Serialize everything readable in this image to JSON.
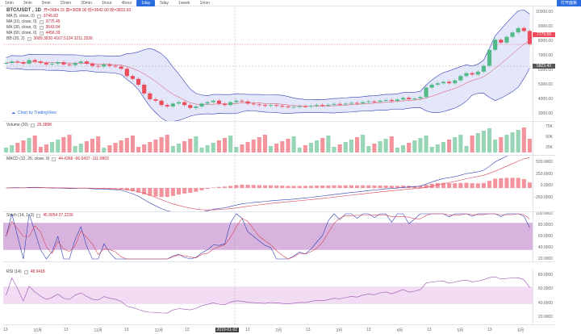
{
  "timeframes": [
    "1min",
    "3min",
    "5min",
    "15min",
    "30min",
    "1hour",
    "4hour",
    "1day",
    "5day",
    "1week",
    "1mon"
  ],
  "active_timeframe": "1day",
  "top_right_button": "打开面板",
  "symbol": {
    "name": "BTC/USDT , 1D",
    "ohlc": "开=3684.15 高=3838.00 低=3642.00 收=3823.93"
  },
  "indicators_main": [
    {
      "label": "MA (5, close, 0)",
      "value": "3746.83"
    },
    {
      "label": "MA (10, close, 0)",
      "value": "3775.45"
    },
    {
      "label": "MA (30, close, 0)",
      "value": "3643.04"
    },
    {
      "label": "MA (60, close, 0)",
      "value": "4456.39"
    },
    {
      "label": "BB (20, 2)",
      "value": "3689.3830  4167.5124  3211.2536"
    }
  ],
  "credit": "Chart by TradingView",
  "price_axis": [
    "10000.00",
    "9000.00",
    "8000.00",
    "7000.00",
    "6000.00",
    "5000.00",
    "4000.00",
    "3000.00"
  ],
  "current_price": "7779.56",
  "crosshair_price": "5823.43",
  "volume": {
    "label": "Volume (20)",
    "value": "26.389K",
    "axis": [
      "75K",
      "50K",
      "25K"
    ]
  },
  "macd": {
    "label": "MACD (12, 26, close, 9)",
    "values": "44.4366  -66.6437  -111.0803",
    "axis": [
      "500.0000",
      "250.0000",
      "0.0000",
      "-250.0000"
    ]
  },
  "stoch": {
    "label": "Stoch (14, 1, 3)",
    "values": "45.9954  27.2236",
    "axis": [
      "100.0000",
      "80.0000",
      "60.0000",
      "40.0000",
      "20.0000"
    ]
  },
  "rsi": {
    "label": "RSI (14)",
    "value": "48.9418",
    "axis": [
      "80.0000",
      "60.0000",
      "40.0000",
      "20.0000"
    ]
  },
  "x_axis": [
    "13",
    "10月",
    "13",
    "11月",
    "13",
    "12月",
    "13",
    "2019-01-02",
    "13",
    "2月",
    "13",
    "3月",
    "13",
    "4月",
    "13",
    "5月",
    "13",
    "6月"
  ],
  "colors": {
    "up": "#53b987",
    "down": "#eb4d5c",
    "bb": "#2f3fb3",
    "bb_fill": "#c9cdf4",
    "stoch_fill": "#d7b3de",
    "rsi_fill": "#f1dcf3"
  },
  "chart_data": {
    "type": "candlestick",
    "closes": [
      6500,
      6600,
      6550,
      6450,
      6700,
      6600,
      6500,
      6400,
      6450,
      6550,
      6400,
      6350,
      6500,
      6600,
      6450,
      6300,
      6250,
      6400,
      6300,
      6250,
      6100,
      5600,
      5400,
      5000,
      4400,
      4000,
      3900,
      3600,
      3500,
      3700,
      3800,
      3600,
      3400,
      3500,
      3700,
      3800,
      3900,
      3700,
      3600,
      3800,
      3900,
      3850,
      3700,
      3650,
      3600,
      3550,
      3600,
      3550,
      3500,
      3450,
      3480,
      3520,
      3500,
      3550,
      3600,
      3580,
      3620,
      3680,
      3650,
      3700,
      3750,
      3720,
      3800,
      3850,
      3820,
      3900,
      3950,
      3880,
      3980,
      4100,
      4000,
      4050,
      4150,
      4800,
      5000,
      5100,
      5200,
      5100,
      5300,
      5600,
      5800,
      5700,
      5900,
      6300,
      7400,
      8100,
      7900,
      8300,
      8600,
      8900,
      8700,
      7800
    ]
  }
}
